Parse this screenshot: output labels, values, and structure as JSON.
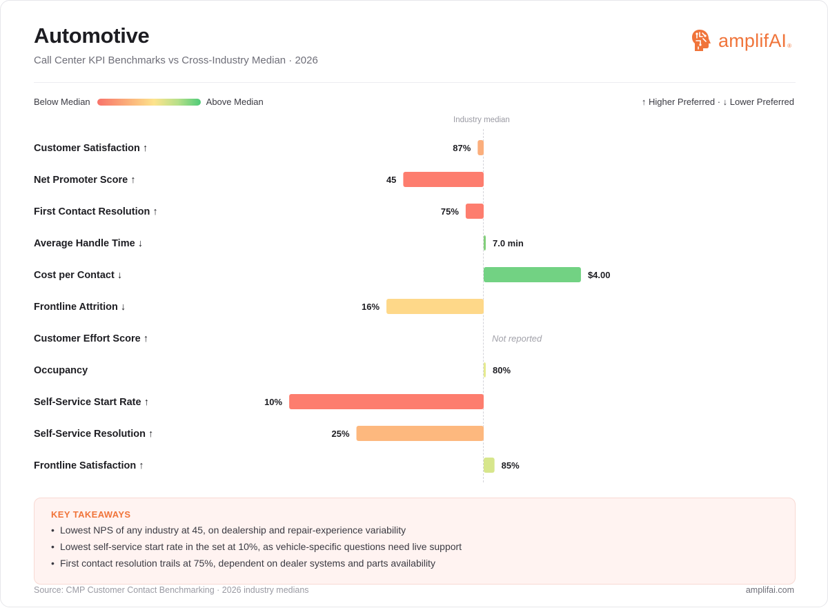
{
  "header": {
    "title": "Automotive",
    "subtitle": "Call Center KPI Benchmarks vs Cross-Industry Median · 2026"
  },
  "logo": {
    "text": "amplifAI",
    "registered": "®",
    "icon": "brain-head-icon",
    "color": "#f0743a"
  },
  "legend": {
    "below_label": "Below Median",
    "above_label": "Above Median",
    "direction_note": "↑ Higher Preferred · ↓ Lower Preferred"
  },
  "chart_data": {
    "type": "bar",
    "orientation": "horizontal-diverging",
    "title": "Automotive",
    "reference_label": "Industry median",
    "not_reported_label": "Not reported",
    "rows": [
      {
        "label": "Customer Satisfaction ↑",
        "value_label": "87%",
        "deviation": -0.05,
        "color": "#fbae7c"
      },
      {
        "label": "Net Promoter Score ↑",
        "value_label": "45",
        "deviation": -0.67,
        "color": "#fd7d6e"
      },
      {
        "label": "First Contact Resolution ↑",
        "value_label": "75%",
        "deviation": -0.15,
        "color": "#fd7d6e"
      },
      {
        "label": "Average Handle Time ↓",
        "value_label": "7.0 min",
        "deviation": 0.01,
        "color": "#82cf7a"
      },
      {
        "label": "Cost per Contact ↓",
        "value_label": "$4.00",
        "deviation": 0.81,
        "color": "#72d283"
      },
      {
        "label": "Frontline Attrition ↓",
        "value_label": "16%",
        "deviation": -0.81,
        "color": "#fed889"
      },
      {
        "label": "Customer Effort Score ↑",
        "value_label": null,
        "deviation": null,
        "color": null
      },
      {
        "label": "Occupancy",
        "value_label": "80%",
        "deviation": 0.01,
        "color": "#e5ea8e"
      },
      {
        "label": "Self-Service Start Rate ↑",
        "value_label": "10%",
        "deviation": -1.62,
        "color": "#fd7d6e"
      },
      {
        "label": "Self-Service Resolution ↑",
        "value_label": "25%",
        "deviation": -1.06,
        "color": "#fdb87e"
      },
      {
        "label": "Frontline Satisfaction ↑",
        "value_label": "85%",
        "deviation": 0.09,
        "color": "#d7e68c"
      }
    ],
    "xlim": [
      -1.62,
      0.81
    ]
  },
  "takeaways": {
    "title": "KEY TAKEAWAYS",
    "items": [
      "Lowest NPS of any industry at 45, on dealership and repair-experience variability",
      "Lowest self-service start rate in the set at 10%, as vehicle-specific questions need live support",
      "First contact resolution trails at 75%, dependent on dealer systems and parts availability"
    ]
  },
  "footer": {
    "source": "Source: CMP Customer Contact Benchmarking · 2026 industry medians",
    "site": "amplifai.com"
  }
}
